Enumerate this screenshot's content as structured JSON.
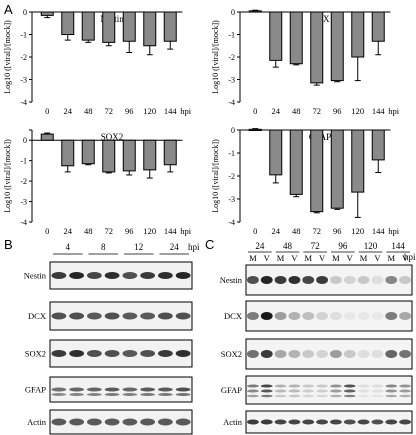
{
  "panel_letters": [
    "A",
    "B",
    "C"
  ],
  "chart_data": [
    {
      "type": "bar",
      "title": "Nestin",
      "ylabel": "Log10 ([viral]/[mock])",
      "categories": [
        "0",
        "24",
        "48",
        "72",
        "96",
        "120",
        "144"
      ],
      "x_unit": "hpi",
      "values": [
        -0.15,
        -1.0,
        -1.25,
        -1.35,
        -1.3,
        -1.5,
        -1.3
      ],
      "errors": [
        0.1,
        0.25,
        0.1,
        0.15,
        0.5,
        0.4,
        0.35
      ],
      "ylim": [
        -4,
        0
      ],
      "yticks": [
        "0",
        "-1",
        "-2",
        "-3",
        "-4"
      ]
    },
    {
      "type": "bar",
      "title": "DCX",
      "ylabel": "Log10 ([viral]/[mock])",
      "categories": [
        "0",
        "24",
        "48",
        "72",
        "96",
        "120",
        "144"
      ],
      "x_unit": "hpi",
      "values": [
        0.05,
        -2.15,
        -2.3,
        -3.15,
        -3.05,
        -2.0,
        -1.3
      ],
      "errors": [
        0.03,
        0.3,
        0.05,
        0.1,
        0.05,
        1.05,
        0.6
      ],
      "ylim": [
        -4,
        0
      ],
      "yticks": [
        "0",
        "-1",
        "-2",
        "-3",
        "-4"
      ]
    },
    {
      "type": "bar",
      "title": "SOX2",
      "ylabel": "Log10 ([viral]/[mock])",
      "categories": [
        "0",
        "24",
        "48",
        "72",
        "96",
        "120",
        "144"
      ],
      "x_unit": "hpi",
      "values": [
        0.3,
        -1.25,
        -1.15,
        -1.55,
        -1.5,
        -1.45,
        -1.2
      ],
      "errors": [
        0.05,
        0.3,
        0.05,
        0.05,
        0.2,
        0.4,
        0.35
      ],
      "ylim": [
        -4,
        0.5
      ],
      "yticks": [
        "0",
        "-1",
        "-2",
        "-3",
        "-4"
      ]
    },
    {
      "type": "bar",
      "title": "GFAP",
      "ylabel": "Log10 ([viral]/[mock])",
      "categories": [
        "0",
        "24",
        "48",
        "72",
        "96",
        "120",
        "144"
      ],
      "x_unit": "hpi",
      "values": [
        0.03,
        -1.95,
        -2.8,
        -3.55,
        -3.4,
        -2.7,
        -1.3
      ],
      "errors": [
        0.03,
        0.35,
        0.1,
        0.05,
        0.05,
        1.1,
        0.55
      ],
      "ylim": [
        -4,
        0
      ],
      "yticks": [
        "0",
        "-1",
        "-2",
        "-3",
        "-4"
      ]
    }
  ],
  "blot_b": {
    "time_labels": [
      "4",
      "8",
      "12",
      "24"
    ],
    "time_unit": "hpi",
    "rows": [
      "Nestin",
      "DCX",
      "SOX2",
      "GFAP",
      "Actin"
    ]
  },
  "blot_c": {
    "time_labels": [
      "24",
      "48",
      "72",
      "96",
      "120",
      "144"
    ],
    "time_unit": "hpi",
    "lane_labels": [
      "M",
      "V",
      "M",
      "V",
      "M",
      "V",
      "M",
      "V",
      "M",
      "V",
      "M",
      "V"
    ],
    "rows": [
      "Nestin",
      "DCX",
      "SOX2",
      "GFAP",
      "Actin"
    ]
  },
  "colors": {
    "bar_fill": "#8a8a8a",
    "bar_stroke": "#000000",
    "blot_band": "#1a1a1a"
  }
}
